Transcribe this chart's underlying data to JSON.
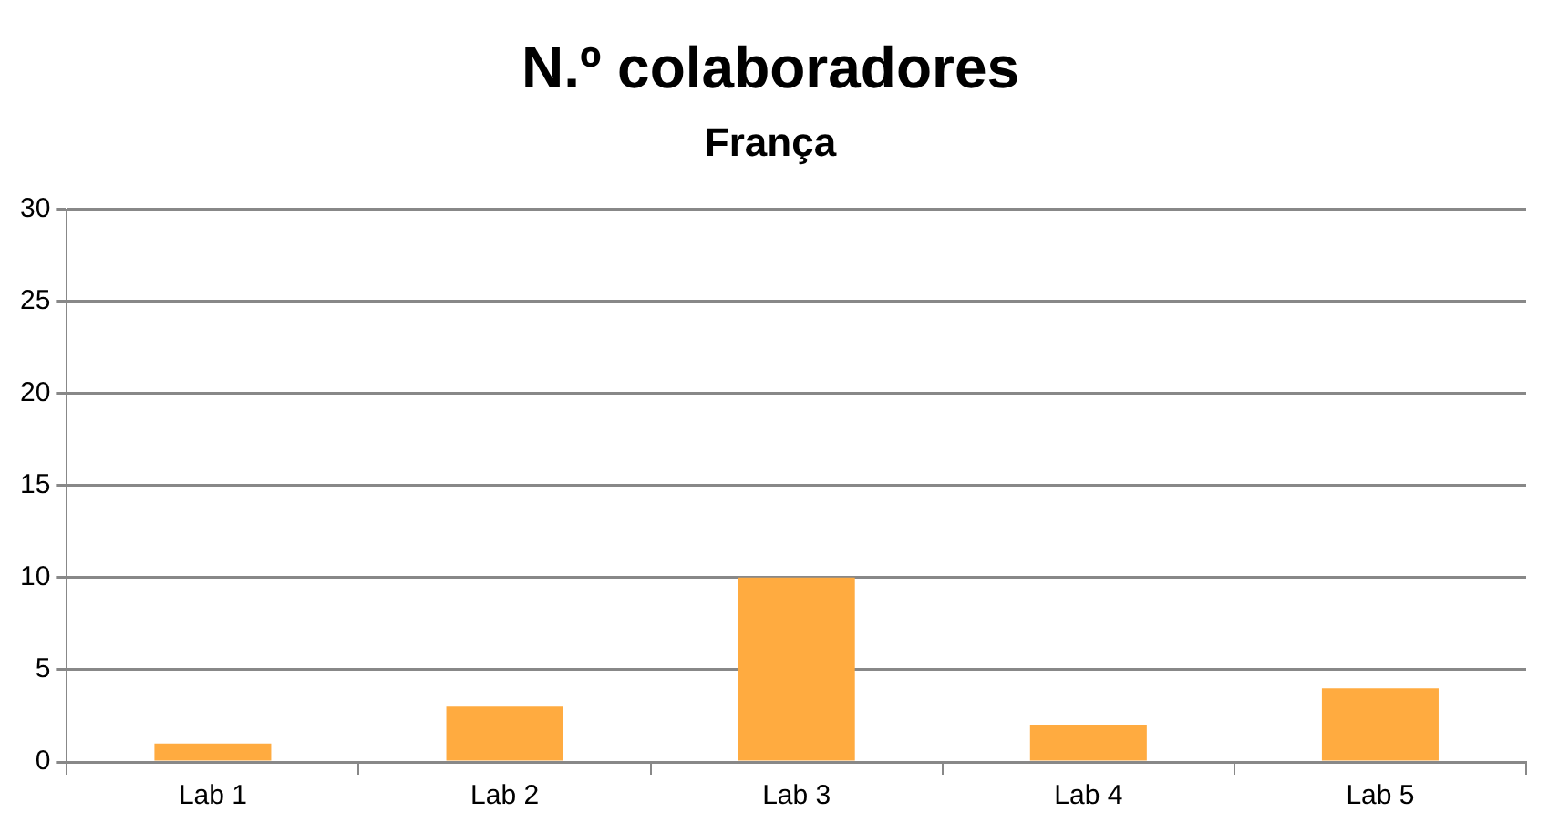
{
  "chart_data": {
    "type": "bar",
    "title": "N.º colaboradores",
    "subtitle": "França",
    "categories": [
      "Lab 1",
      "Lab 2",
      "Lab 3",
      "Lab 4",
      "Lab 5"
    ],
    "values": [
      1,
      3,
      10,
      2,
      4
    ],
    "color": "#ffab40",
    "ylim": [
      0,
      30
    ],
    "yticks": [
      0,
      5,
      10,
      15,
      20,
      25,
      30
    ],
    "grid": "y",
    "legend": false
  }
}
